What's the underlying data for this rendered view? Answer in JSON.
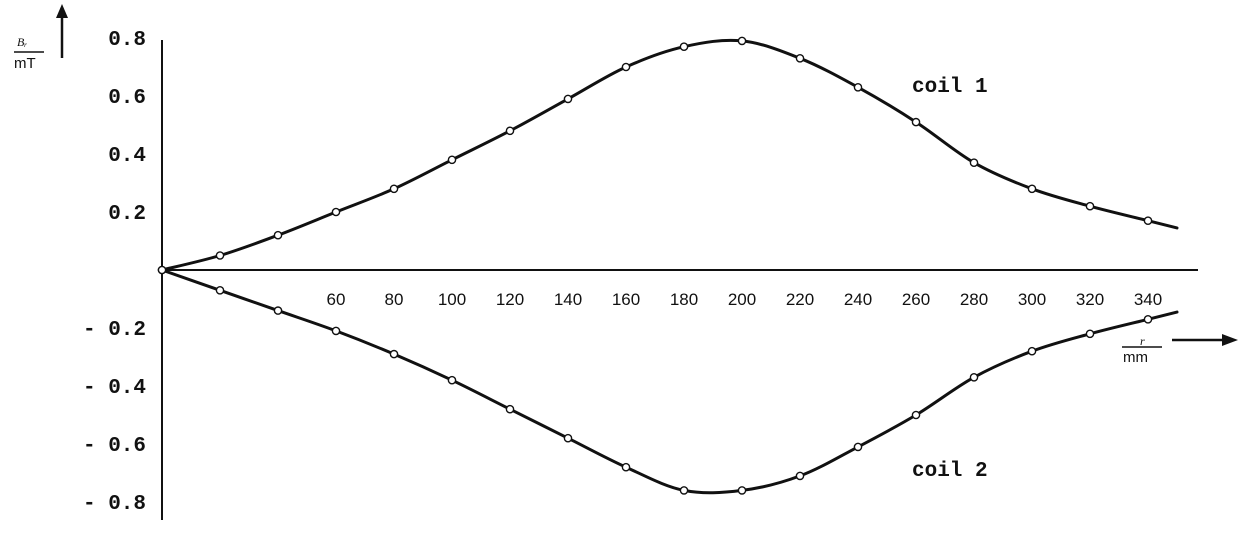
{
  "chart_data": {
    "type": "line",
    "x": [
      0,
      20,
      40,
      60,
      80,
      100,
      120,
      140,
      160,
      180,
      200,
      220,
      240,
      260,
      280,
      300,
      320,
      340
    ],
    "x_tick_labels": [
      "60",
      "80",
      "100",
      "120",
      "140",
      "160",
      "180",
      "200",
      "220",
      "240",
      "260",
      "280",
      "300",
      "320",
      "340"
    ],
    "y_tick_labels": [
      "0.8",
      "0.6",
      "0.4",
      "0.2",
      "- 0.2",
      "- 0.4",
      "- 0.6",
      "- 0.8"
    ],
    "xlim": [
      0,
      350
    ],
    "ylim": [
      -0.85,
      0.85
    ],
    "x_axis_label": {
      "symbol": "r",
      "unit": "mm"
    },
    "y_axis_label": {
      "symbol": "Bᵣ",
      "unit": "mT"
    },
    "series": [
      {
        "name": "coil 1",
        "values": [
          0.0,
          0.05,
          0.12,
          0.2,
          0.28,
          0.38,
          0.48,
          0.59,
          0.7,
          0.77,
          0.79,
          0.73,
          0.63,
          0.51,
          0.37,
          0.28,
          0.22,
          0.17
        ]
      },
      {
        "name": "coil 2",
        "values": [
          0.0,
          -0.07,
          -0.14,
          -0.21,
          -0.29,
          -0.38,
          -0.48,
          -0.58,
          -0.68,
          -0.76,
          -0.76,
          -0.71,
          -0.61,
          -0.5,
          -0.37,
          -0.28,
          -0.22,
          -0.17
        ]
      }
    ],
    "grid": false,
    "legend": "none (labels placed next to curves)"
  }
}
